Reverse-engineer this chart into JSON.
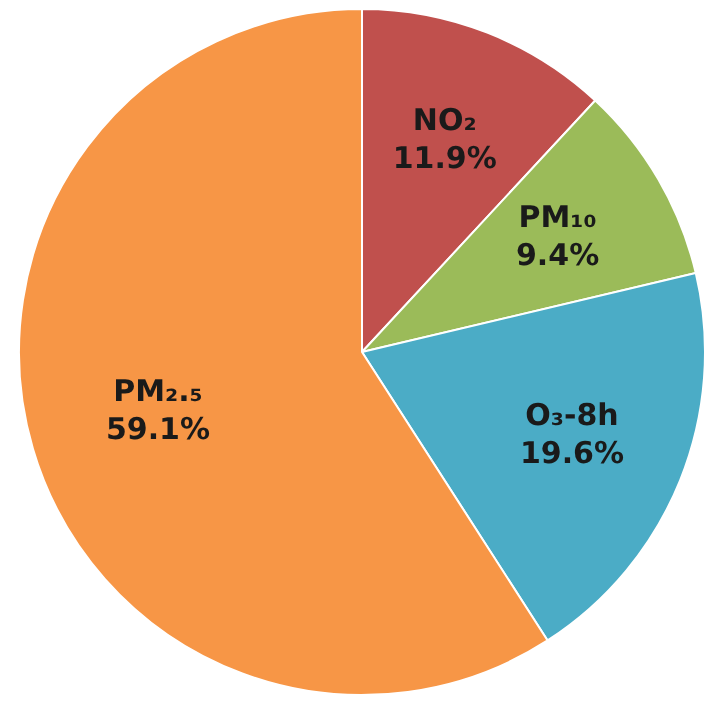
{
  "chart_data": {
    "type": "pie",
    "categories": [
      "NO₂",
      "PM₁₀",
      "O₃-8h",
      "PM₂.₅"
    ],
    "values": [
      11.9,
      9.4,
      19.6,
      59.1
    ],
    "colors": [
      "#c0504d",
      "#9bbb59",
      "#4bacc6",
      "#f79646"
    ],
    "value_labels": [
      "11.9%",
      "9.4%",
      "19.6%",
      "59.1%"
    ]
  }
}
